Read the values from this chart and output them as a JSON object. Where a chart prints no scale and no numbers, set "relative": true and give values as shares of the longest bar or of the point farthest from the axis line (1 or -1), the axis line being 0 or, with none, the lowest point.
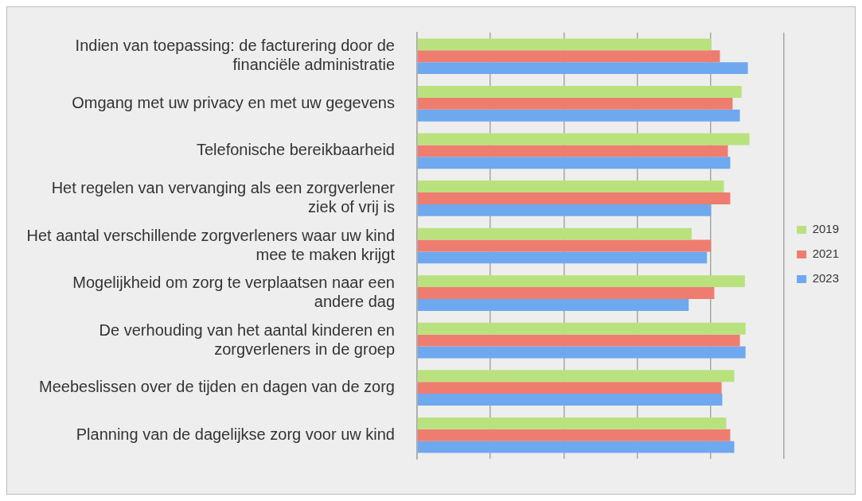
{
  "chart_data": {
    "type": "bar",
    "orientation": "horizontal",
    "relative": true,
    "grid": "x",
    "legend": "right",
    "categories": [
      "Indien van toepassing: de facturering door de financiële administratie",
      "Omgang met uw privacy en met uw gegevens",
      "Telefonische bereikbaarheid",
      "Het regelen van vervanging als een zorgverlener ziek of vrij is",
      "Het aantal verschillende zorgverleners waar uw kind mee te maken krijgt",
      "Mogelijkheid om zorg te verplaatsen naar een andere dag",
      "De verhouding van het aantal kinderen en zorgverleners in de groep",
      "Meebeslissen over de tijden en dagen van de zorg",
      "Planning van de dagelijkse zorg voor uw kind"
    ],
    "series": [
      {
        "name": "2019",
        "color": "#b9e27e",
        "values": [
          0.884,
          0.976,
          1,
          0.923,
          0.826,
          0.986,
          0.988,
          0.954,
          0.93
        ]
      },
      {
        "name": "2021",
        "color": "#ee7d70",
        "values": [
          0.911,
          0.949,
          0.935,
          0.942,
          0.884,
          0.894,
          0.971,
          0.916,
          0.942
        ]
      },
      {
        "name": "2023",
        "color": "#6ea8ef",
        "values": [
          0.995,
          0.971,
          0.942,
          0.884,
          0.872,
          0.817,
          0.988,
          0.918,
          0.954
        ]
      }
    ]
  }
}
